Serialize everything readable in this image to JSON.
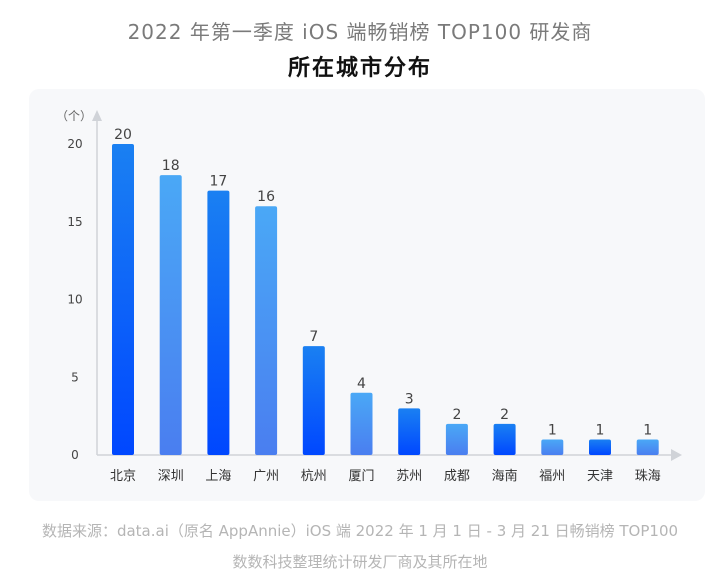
{
  "title_line1": "2022 年第一季度 iOS 端畅销榜 TOP100 研发商",
  "title_line2": "所在城市分布",
  "source_line1": "数据来源：data.ai（原名 AppAnnie）iOS 端 2022 年 1 月 1 日 - 3 月 21 日畅销榜 TOP100",
  "source_line2": "数数科技整理统计研发厂商及其所在地",
  "colors": {
    "deep_top": "#1a80f2",
    "deep_bottom": "#0047ff",
    "light_top": "#4aa8f6",
    "light_bottom": "#4a7ef0",
    "axis": "#d0d3d8",
    "text": "#333333"
  },
  "chart_data": {
    "type": "bar",
    "title": "2022 年第一季度 iOS 端畅销榜 TOP100 研发商所在城市分布",
    "xlabel": "",
    "ylabel": "（个）",
    "categories": [
      "北京",
      "深圳",
      "上海",
      "广州",
      "杭州",
      "厦门",
      "苏州",
      "成都",
      "海南",
      "福州",
      "天津",
      "珠海"
    ],
    "values": [
      20,
      18,
      17,
      16,
      7,
      4,
      3,
      2,
      2,
      1,
      1,
      1
    ],
    "yticks": [
      0,
      5,
      10,
      15,
      20
    ],
    "ylim": [
      0,
      20
    ],
    "grid": false
  }
}
